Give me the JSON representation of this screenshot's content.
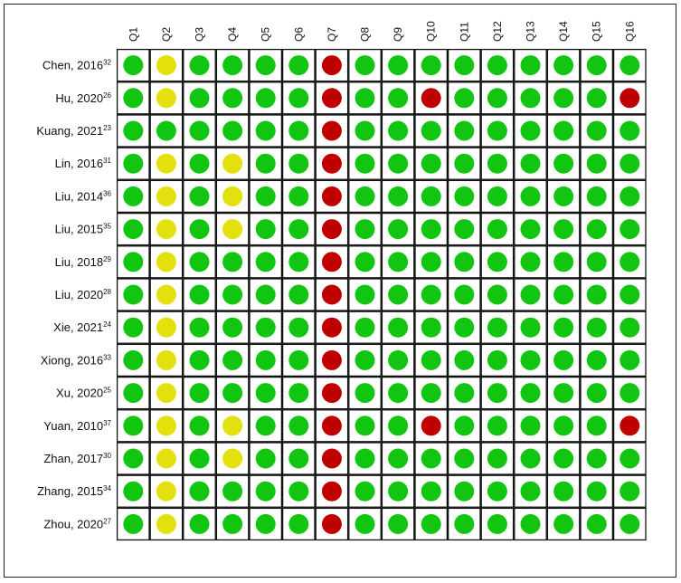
{
  "chart_data": {
    "type": "table",
    "columns": [
      "Q1",
      "Q2",
      "Q3",
      "Q4",
      "Q5",
      "Q6",
      "Q7",
      "Q8",
      "Q9",
      "Q10",
      "Q11",
      "Q12",
      "Q13",
      "Q14",
      "Q15",
      "Q16"
    ],
    "rows": [
      {
        "label": "Chen, 2016",
        "ref": "32",
        "values": [
          "green",
          "yellow",
          "green",
          "green",
          "green",
          "green",
          "red",
          "green",
          "green",
          "green",
          "green",
          "green",
          "green",
          "green",
          "green",
          "green"
        ]
      },
      {
        "label": "Hu, 2020",
        "ref": "26",
        "values": [
          "green",
          "yellow",
          "green",
          "green",
          "green",
          "green",
          "red",
          "green",
          "green",
          "red",
          "green",
          "green",
          "green",
          "green",
          "green",
          "red"
        ]
      },
      {
        "label": "Kuang, 2021",
        "ref": "23",
        "values": [
          "green",
          "green",
          "green",
          "green",
          "green",
          "green",
          "red",
          "green",
          "green",
          "green",
          "green",
          "green",
          "green",
          "green",
          "green",
          "green"
        ]
      },
      {
        "label": "Lin, 2016",
        "ref": "31",
        "values": [
          "green",
          "yellow",
          "green",
          "yellow",
          "green",
          "green",
          "red",
          "green",
          "green",
          "green",
          "green",
          "green",
          "green",
          "green",
          "green",
          "green"
        ]
      },
      {
        "label": "Liu, 2014",
        "ref": "36",
        "values": [
          "green",
          "yellow",
          "green",
          "yellow",
          "green",
          "green",
          "red",
          "green",
          "green",
          "green",
          "green",
          "green",
          "green",
          "green",
          "green",
          "green"
        ]
      },
      {
        "label": "Liu, 2015",
        "ref": "35",
        "values": [
          "green",
          "yellow",
          "green",
          "yellow",
          "green",
          "green",
          "red",
          "green",
          "green",
          "green",
          "green",
          "green",
          "green",
          "green",
          "green",
          "green"
        ]
      },
      {
        "label": "Liu, 2018",
        "ref": "29",
        "values": [
          "green",
          "yellow",
          "green",
          "green",
          "green",
          "green",
          "red",
          "green",
          "green",
          "green",
          "green",
          "green",
          "green",
          "green",
          "green",
          "green"
        ]
      },
      {
        "label": "Liu, 2020",
        "ref": "28",
        "values": [
          "green",
          "yellow",
          "green",
          "green",
          "green",
          "green",
          "red",
          "green",
          "green",
          "green",
          "green",
          "green",
          "green",
          "green",
          "green",
          "green"
        ]
      },
      {
        "label": "Xie, 2021",
        "ref": "24",
        "values": [
          "green",
          "yellow",
          "green",
          "green",
          "green",
          "green",
          "red",
          "green",
          "green",
          "green",
          "green",
          "green",
          "green",
          "green",
          "green",
          "green"
        ]
      },
      {
        "label": "Xiong, 2016",
        "ref": "33",
        "values": [
          "green",
          "yellow",
          "green",
          "green",
          "green",
          "green",
          "red",
          "green",
          "green",
          "green",
          "green",
          "green",
          "green",
          "green",
          "green",
          "green"
        ]
      },
      {
        "label": "Xu, 2020",
        "ref": "25",
        "values": [
          "green",
          "yellow",
          "green",
          "green",
          "green",
          "green",
          "red",
          "green",
          "green",
          "green",
          "green",
          "green",
          "green",
          "green",
          "green",
          "green"
        ]
      },
      {
        "label": "Yuan, 2010",
        "ref": "37",
        "values": [
          "green",
          "yellow",
          "green",
          "yellow",
          "green",
          "green",
          "red",
          "green",
          "green",
          "red",
          "green",
          "green",
          "green",
          "green",
          "green",
          "red"
        ]
      },
      {
        "label": "Zhan, 2017",
        "ref": "30",
        "values": [
          "green",
          "yellow",
          "green",
          "yellow",
          "green",
          "green",
          "red",
          "green",
          "green",
          "green",
          "green",
          "green",
          "green",
          "green",
          "green",
          "green"
        ]
      },
      {
        "label": "Zhang, 2015",
        "ref": "34",
        "values": [
          "green",
          "yellow",
          "green",
          "green",
          "green",
          "green",
          "red",
          "green",
          "green",
          "green",
          "green",
          "green",
          "green",
          "green",
          "green",
          "green"
        ]
      },
      {
        "label": "Zhou, 2020",
        "ref": "27",
        "values": [
          "green",
          "yellow",
          "green",
          "green",
          "green",
          "green",
          "red",
          "green",
          "green",
          "green",
          "green",
          "green",
          "green",
          "green",
          "green",
          "green"
        ]
      }
    ],
    "colors": {
      "green": "#11c511",
      "yellow": "#e3e00e",
      "red": "#c00000"
    }
  }
}
